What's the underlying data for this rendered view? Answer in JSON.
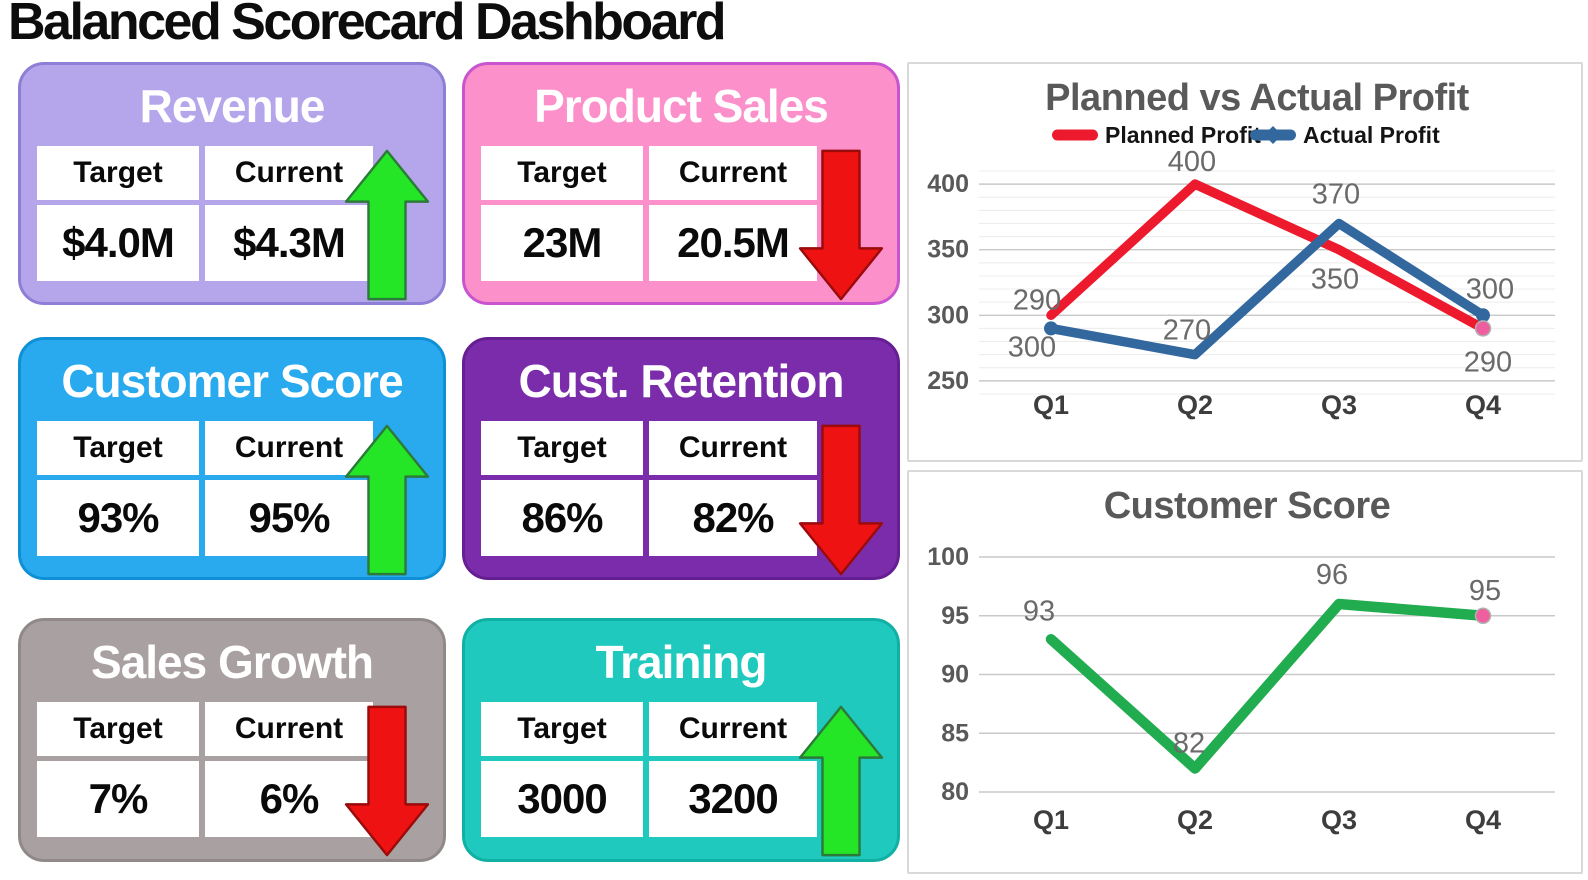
{
  "page_title": "Balanced Scorecard Dashboard",
  "cards": [
    {
      "title": "Revenue",
      "header_target": "Target",
      "header_current": "Current",
      "target_value": "$4.0M",
      "current_value": "$4.3M",
      "trend": "up",
      "colors": {
        "bg": "#b5a6ec",
        "border": "#8f7ed8"
      }
    },
    {
      "title": "Product Sales",
      "header_target": "Target",
      "header_current": "Current",
      "target_value": "23M",
      "current_value": "20.5M",
      "trend": "down",
      "colors": {
        "bg": "#fb90ca",
        "border": "#c855cf"
      }
    },
    {
      "title": "Customer Score",
      "header_target": "Target",
      "header_current": "Current",
      "target_value": "93%",
      "current_value": "95%",
      "trend": "up",
      "colors": {
        "bg": "#29a9ee",
        "border": "#0f8fd6"
      }
    },
    {
      "title": "Cust. Retention",
      "header_target": "Target",
      "header_current": "Current",
      "target_value": "86%",
      "current_value": "82%",
      "trend": "down",
      "colors": {
        "bg": "#7b2caa",
        "border": "#651f92"
      }
    },
    {
      "title": "Sales Growth",
      "header_target": "Target",
      "header_current": "Current",
      "target_value": "7%",
      "current_value": "6%",
      "trend": "down",
      "colors": {
        "bg": "#a9a1a1",
        "border": "#918989"
      }
    },
    {
      "title": "Training",
      "header_target": "Target",
      "header_current": "Current",
      "target_value": "3000",
      "current_value": "3200",
      "trend": "up",
      "colors": {
        "bg": "#1fc9bd",
        "border": "#10b0a4"
      }
    }
  ],
  "arrow_colors": {
    "up_fill": "#24e626",
    "up_stroke": "#2c7a3a",
    "down_fill": "#ee1212",
    "down_stroke": "#9b0b0b"
  },
  "chart_data": [
    {
      "type": "line",
      "title": "Planned vs Actual Profit",
      "categories": [
        "Q1",
        "Q2",
        "Q3",
        "Q4"
      ],
      "series": [
        {
          "name": "Planned Profit",
          "color": "#ed1a2d",
          "values": [
            300,
            400,
            350,
            290
          ]
        },
        {
          "name": "Actual Profit",
          "color": "#33689e",
          "values": [
            290,
            270,
            370,
            300
          ]
        }
      ],
      "xlabel": "",
      "ylabel": "",
      "ylim": [
        240,
        410
      ],
      "yticks": [
        250,
        300,
        350,
        400
      ],
      "grid": "horizontal-minor",
      "legend_position": "top",
      "end_marker_color": "#ef5fa0",
      "axis_text_color": "#595959",
      "category_text_color": "#3d3d3d",
      "data_label_color": "#6a6a6a",
      "title_color": "#595959"
    },
    {
      "type": "line",
      "title": "Customer Score",
      "categories": [
        "Q1",
        "Q2",
        "Q3",
        "Q4"
      ],
      "series": [
        {
          "name": "Customer Score",
          "color": "#22ac50",
          "values": [
            93,
            82,
            96,
            95
          ]
        }
      ],
      "xlabel": "",
      "ylabel": "",
      "ylim": [
        80,
        100
      ],
      "yticks": [
        80,
        85,
        90,
        95,
        100
      ],
      "grid": "horizontal",
      "legend_position": "none",
      "end_marker_color": "#ef5fa0",
      "axis_text_color": "#595959",
      "category_text_color": "#3d3d3d",
      "data_label_color": "#6a6a6a",
      "title_color": "#595959"
    }
  ]
}
